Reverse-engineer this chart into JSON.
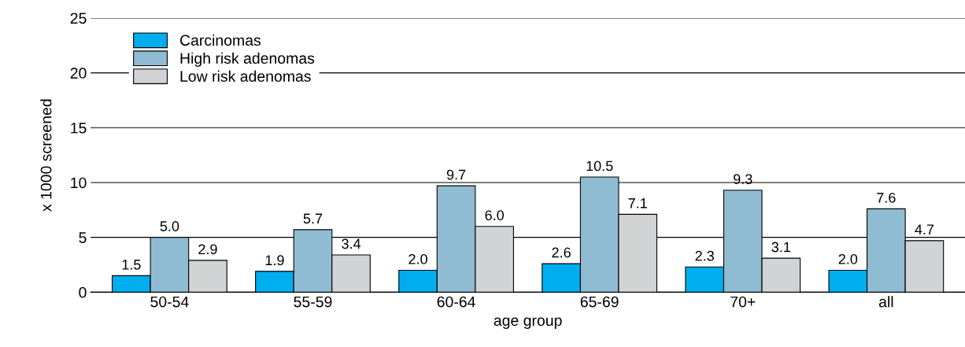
{
  "chart_data": {
    "type": "bar",
    "xlabel": "age group",
    "ylabel": "x 1000 screened",
    "categories": [
      "50-54",
      "55-59",
      "60-64",
      "65-69",
      "70+",
      "all"
    ],
    "series": [
      {
        "name": "Carcinomas",
        "color": "#00aeef",
        "values": [
          1.5,
          1.9,
          2.0,
          2.6,
          2.3,
          2.0
        ],
        "value_labels": [
          "1.5",
          "1.9",
          "2.0",
          "2.6",
          "2.3",
          "2.0"
        ]
      },
      {
        "name": "High risk adenomas",
        "color": "#8fbcd3",
        "values": [
          5.0,
          5.7,
          9.7,
          10.5,
          9.3,
          7.6
        ],
        "value_labels": [
          "5.0",
          "5.7",
          "9.7",
          "10.5",
          "9.3",
          "7.6"
        ]
      },
      {
        "name": "Low risk adenomas",
        "color": "#d1d3d4",
        "values": [
          2.9,
          3.4,
          6.0,
          7.1,
          3.1,
          4.7
        ],
        "value_labels": [
          "2.9",
          "3.4",
          "6.0",
          "7.1",
          "3.1",
          "4.7"
        ]
      }
    ],
    "ylim": [
      0,
      25
    ],
    "yticks": [
      0,
      5,
      10,
      15,
      20,
      25
    ],
    "grid": "y",
    "legend": "top left"
  }
}
